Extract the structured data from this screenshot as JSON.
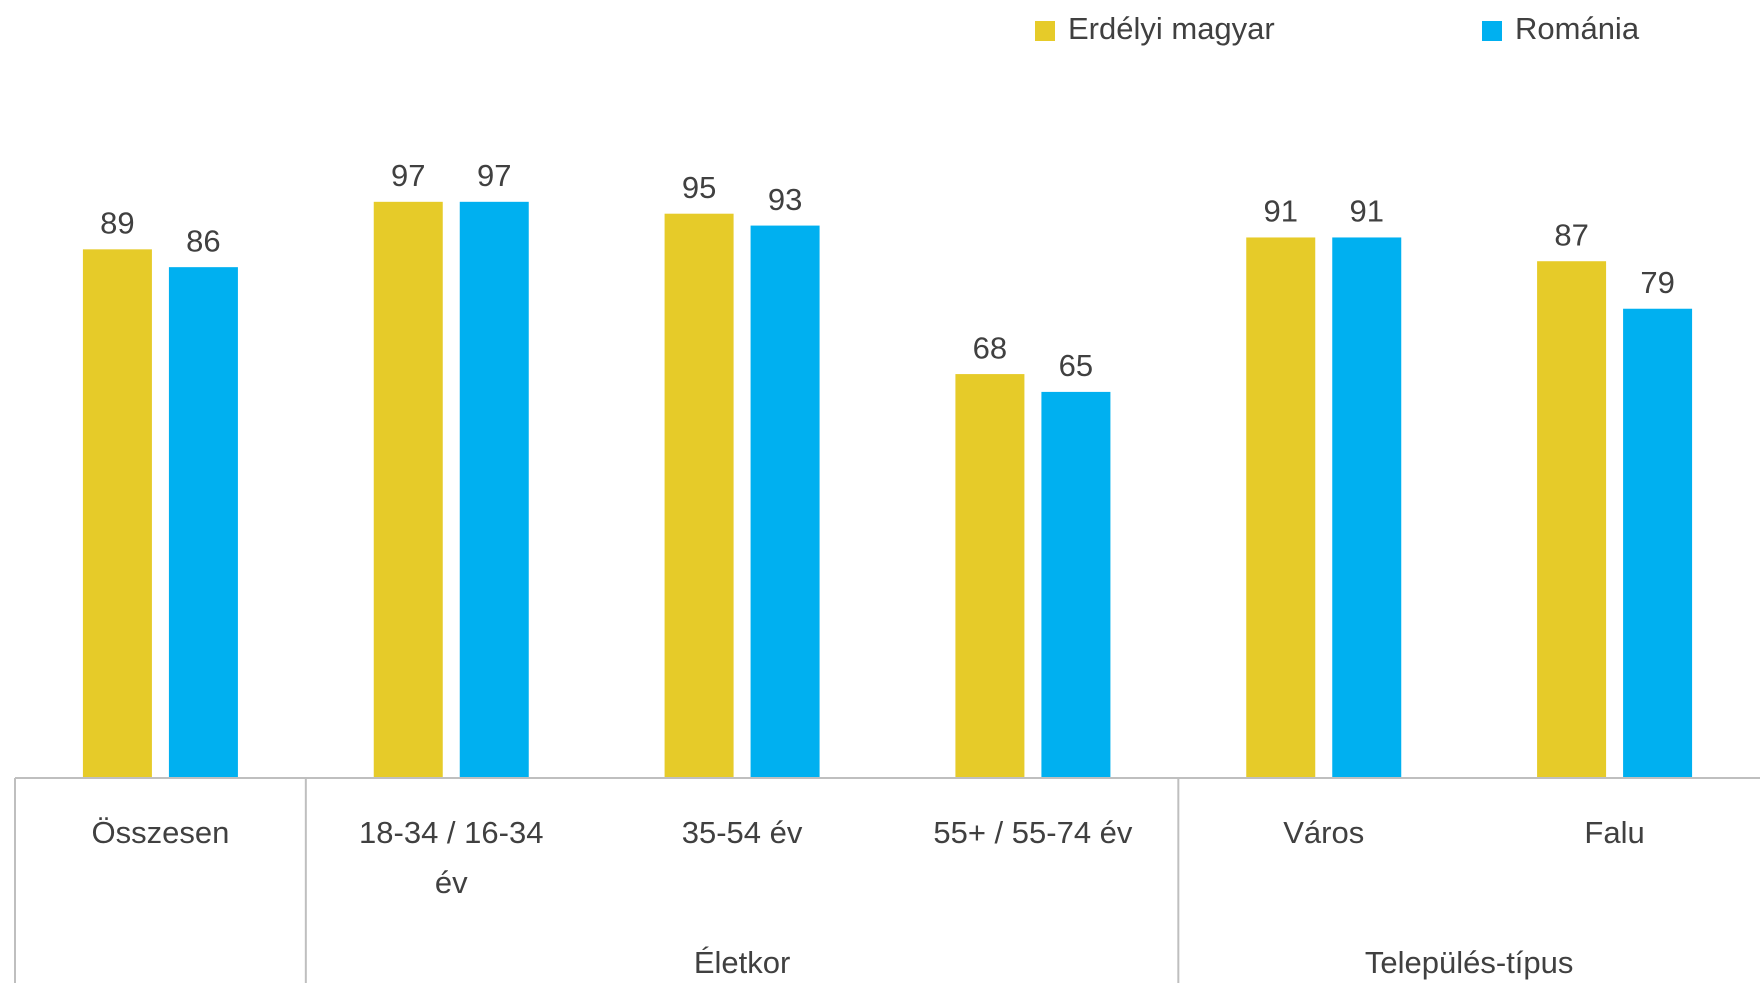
{
  "chart_data": {
    "type": "bar",
    "categories": [
      "Összesen",
      "18-34 / 16-34 év",
      "35-54 év",
      "55+  /  55-74 év",
      "Város",
      "Falu"
    ],
    "groups": [
      "Életkor",
      "Település-típus"
    ],
    "series": [
      {
        "name": "Erdélyi magyar",
        "color": "#e6cb29",
        "values": [
          89,
          97,
          95,
          68,
          91,
          87
        ]
      },
      {
        "name": "Románia",
        "color": "#00b0f0",
        "values": [
          86,
          97,
          93,
          65,
          91,
          79
        ]
      }
    ],
    "ylim": [
      0,
      100
    ],
    "legend": "top-right"
  }
}
